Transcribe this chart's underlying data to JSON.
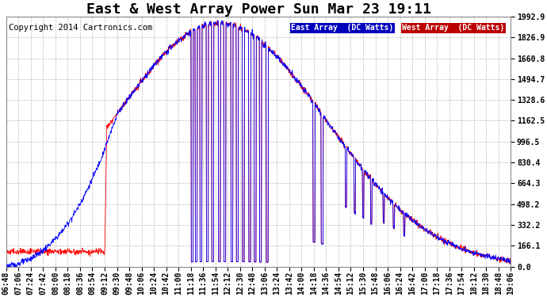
{
  "title": "East & West Array Power Sun Mar 23 19:11",
  "copyright": "Copyright 2014 Cartronics.com",
  "legend_east": "East Array  (DC Watts)",
  "legend_west": "West Array  (DC Watts)",
  "east_color": "#0000ff",
  "west_color": "#ff0000",
  "legend_east_bg": "#0000bb",
  "legend_west_bg": "#bb0000",
  "bg_color": "#ffffff",
  "plot_bg_color": "#ffffff",
  "grid_color": "#bbbbbb",
  "ymax": 1992.9,
  "ymin": 0.0,
  "yticks": [
    0.0,
    166.1,
    332.2,
    498.2,
    664.3,
    830.4,
    996.5,
    1162.5,
    1328.6,
    1494.7,
    1660.8,
    1826.9,
    1992.9
  ],
  "xtick_labels": [
    "06:48",
    "07:06",
    "07:24",
    "07:42",
    "08:00",
    "08:18",
    "08:36",
    "08:54",
    "09:12",
    "09:30",
    "09:48",
    "10:06",
    "10:24",
    "10:42",
    "11:00",
    "11:18",
    "11:36",
    "11:54",
    "12:12",
    "12:30",
    "12:48",
    "13:06",
    "13:24",
    "13:42",
    "14:00",
    "14:18",
    "14:36",
    "14:54",
    "15:12",
    "15:30",
    "15:48",
    "16:06",
    "16:24",
    "16:42",
    "17:00",
    "17:18",
    "17:36",
    "17:54",
    "18:12",
    "18:30",
    "18:48",
    "19:06"
  ],
  "title_fontsize": 13,
  "tick_fontsize": 7,
  "copyright_fontsize": 7.5,
  "figwidth": 6.9,
  "figheight": 3.75,
  "dpi": 100
}
